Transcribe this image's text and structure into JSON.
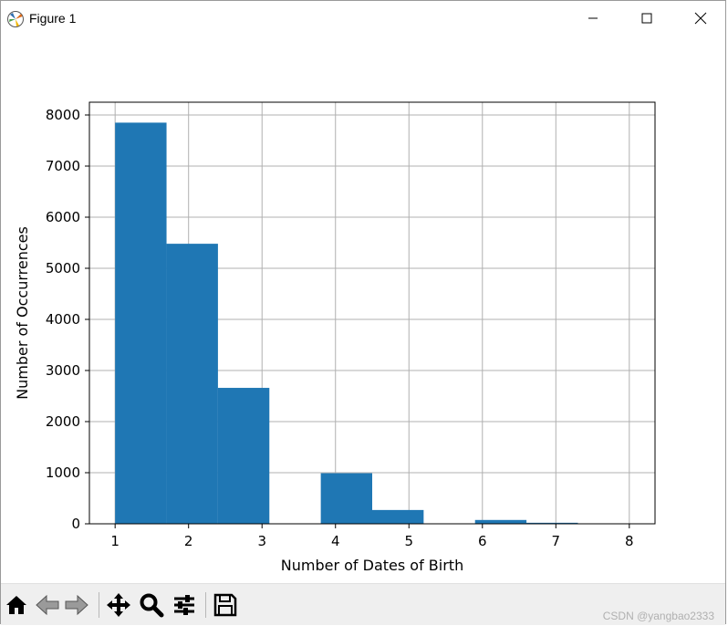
{
  "window": {
    "title": "Figure 1"
  },
  "chart_data": {
    "type": "bar",
    "xlabel": "Number of Dates of Birth",
    "ylabel": "Number of Occurrences",
    "xlim": [
      0.65,
      8.35
    ],
    "ylim": [
      0,
      8250
    ],
    "grid": true,
    "bar_color": "#1f77b4",
    "x_ticks": [
      "1",
      "2",
      "3",
      "4",
      "5",
      "6",
      "7",
      "8"
    ],
    "y_ticks": [
      "0",
      "1000",
      "2000",
      "3000",
      "4000",
      "5000",
      "6000",
      "7000",
      "8000"
    ],
    "bins": [
      {
        "x_start": 1.0,
        "x_end": 1.7,
        "value": 7850
      },
      {
        "x_start": 1.7,
        "x_end": 2.4,
        "value": 5480
      },
      {
        "x_start": 2.4,
        "x_end": 3.1,
        "value": 2660
      },
      {
        "x_start": 3.1,
        "x_end": 3.8,
        "value": 0
      },
      {
        "x_start": 3.8,
        "x_end": 4.5,
        "value": 990
      },
      {
        "x_start": 4.5,
        "x_end": 5.2,
        "value": 270
      },
      {
        "x_start": 5.2,
        "x_end": 5.9,
        "value": 0
      },
      {
        "x_start": 5.9,
        "x_end": 6.6,
        "value": 75
      },
      {
        "x_start": 6.6,
        "x_end": 7.3,
        "value": 20
      },
      {
        "x_start": 7.3,
        "x_end": 8.0,
        "value": 3
      }
    ]
  },
  "toolbar": {
    "icons": [
      "home-icon",
      "back-icon",
      "forward-icon",
      "pan-icon",
      "zoom-icon",
      "configure-subplots-icon",
      "save-icon"
    ]
  },
  "watermark": "CSDN @yangbao2333"
}
